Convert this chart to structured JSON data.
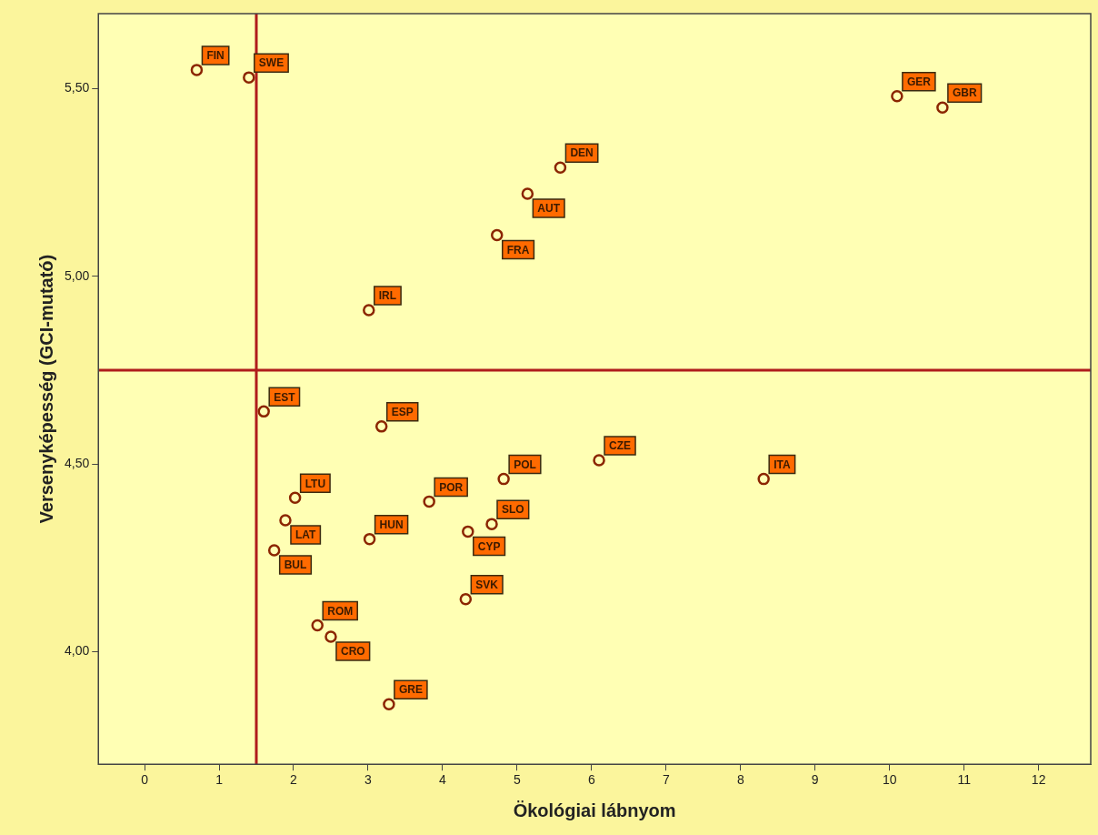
{
  "chart_data": {
    "type": "scatter",
    "xlabel": "Ökológiai lábnyom",
    "ylabel": "Versenyképesség (GCI-mutató)",
    "xlim": [
      -0.62,
      12.7
    ],
    "ylim": [
      3.7,
      5.7
    ],
    "xticks": [
      0,
      1,
      2,
      3,
      4,
      5,
      6,
      7,
      8,
      9,
      10,
      11,
      12
    ],
    "yticks": [
      {
        "value": 4.0,
        "label": "4,00"
      },
      {
        "value": 4.5,
        "label": "4,50"
      },
      {
        "value": 5.0,
        "label": "5,00"
      },
      {
        "value": 5.5,
        "label": "5,50"
      }
    ],
    "grid": false,
    "legend": false,
    "marker": "circle",
    "series": [
      {
        "color": "#8b2500",
        "x": [
          0.7,
          1.4,
          10.1,
          10.71,
          5.58,
          5.14,
          4.73,
          3.01,
          3.18,
          1.6,
          2.02,
          1.89,
          1.74,
          2.32,
          2.5,
          3.28,
          3.02,
          3.82,
          4.34,
          4.66,
          4.31,
          4.82,
          6.1,
          8.31
        ],
        "values": [
          5.55,
          5.53,
          5.48,
          5.45,
          5.29,
          5.22,
          5.11,
          4.91,
          4.6,
          4.64,
          4.41,
          4.35,
          4.27,
          4.07,
          4.04,
          3.86,
          4.3,
          4.4,
          4.32,
          4.34,
          4.14,
          4.46,
          4.51,
          4.46
        ]
      }
    ],
    "ref_lines": [
      {
        "axis": "x",
        "value": 1.5,
        "color": "#b01c1c"
      },
      {
        "axis": "y",
        "value": 4.75,
        "color": "#b01c1c"
      }
    ],
    "annotations": [
      {
        "text": "FIN",
        "x": 0.7,
        "y": 5.55
      },
      {
        "text": "SWE",
        "x": 1.4,
        "y": 5.53
      },
      {
        "text": "GER",
        "x": 10.1,
        "y": 5.48
      },
      {
        "text": "GBR",
        "x": 10.71,
        "y": 5.45
      },
      {
        "text": "DEN",
        "x": 5.58,
        "y": 5.29
      },
      {
        "text": "AUT",
        "x": 5.14,
        "y": 5.22
      },
      {
        "text": "FRA",
        "x": 4.73,
        "y": 5.11
      },
      {
        "text": "IRL",
        "x": 3.01,
        "y": 4.91
      },
      {
        "text": "ESP",
        "x": 3.18,
        "y": 4.6
      },
      {
        "text": "EST",
        "x": 1.6,
        "y": 4.64
      },
      {
        "text": "LTU",
        "x": 2.02,
        "y": 4.41
      },
      {
        "text": "LAT",
        "x": 1.89,
        "y": 4.35
      },
      {
        "text": "BUL",
        "x": 1.74,
        "y": 4.27
      },
      {
        "text": "ROM",
        "x": 2.32,
        "y": 4.07
      },
      {
        "text": "CRO",
        "x": 2.5,
        "y": 4.04
      },
      {
        "text": "GRE",
        "x": 3.28,
        "y": 3.86
      },
      {
        "text": "HUN",
        "x": 3.02,
        "y": 4.3
      },
      {
        "text": "POR",
        "x": 3.82,
        "y": 4.4
      },
      {
        "text": "CYP",
        "x": 4.34,
        "y": 4.32
      },
      {
        "text": "SLO",
        "x": 4.66,
        "y": 4.34
      },
      {
        "text": "SVK",
        "x": 4.31,
        "y": 4.14
      },
      {
        "text": "POL",
        "x": 4.82,
        "y": 4.46
      },
      {
        "text": "CZE",
        "x": 6.1,
        "y": 4.51
      },
      {
        "text": "ITA",
        "x": 8.31,
        "y": 4.46
      }
    ]
  }
}
